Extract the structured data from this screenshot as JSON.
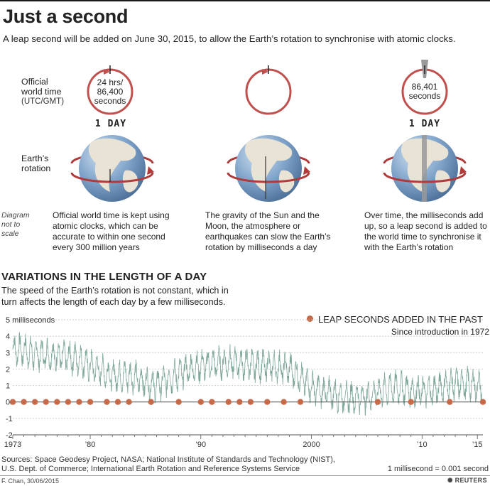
{
  "header": {
    "title": "Just a second",
    "subtitle": "A leap second will be added on June 30, 2015, to allow the Earth’s rotation to synchronise with atomic clocks."
  },
  "diagram": {
    "label_official": "Official",
    "label_world_time": "world time",
    "label_utc": "(UTC/GMT)",
    "label_earth": "Earth’s",
    "label_rotation": "rotation",
    "clock1_line1": "24 hrs/",
    "clock1_line2": "86,400",
    "clock1_line3": "seconds",
    "clock3_line1": "86,401",
    "clock3_line2": "seconds",
    "day_label": "1 DAY",
    "scale_line1": "Diagram",
    "scale_line2": "not to",
    "scale_line3": "scale",
    "desc1": [
      "Official world time is kept using",
      "atomic clocks, which can be",
      "accurate to within one second",
      "every 300 million years"
    ],
    "desc2": [
      "The gravity of the Sun and the",
      "Moon, the atmosphere or",
      "earthquakes can slow the Earth’s",
      "rotation by milliseconds a day"
    ],
    "desc3": [
      "Over time, the milliseconds add",
      "up, so a leap second is added to",
      "the world time to synchronise it",
      "with the Earth’s rotation"
    ]
  },
  "section": {
    "title": "VARIATIONS IN THE LENGTH OF A DAY",
    "subtitle": "The speed of the Earth’s rotation is not constant, which in turn affects the length of each day by a few milliseconds."
  },
  "legend": {
    "label": "LEAP SECONDS ADDED IN THE PAST",
    "sub": "Since introduction in 1972"
  },
  "footer": {
    "sources_line1": "Sources: Space Geodesy Project, NASA; National Institute of Standards and Technology (NIST),",
    "sources_line2": "U.S. Dept. of Commerce; International Earth Rotation and Reference Systems Service",
    "unit_note": "1 millisecond = 0.001 second",
    "credit": "F. Chan, 30/06/2015",
    "brand": "REUTERS"
  },
  "colors": {
    "series": "#7fa898",
    "leap_dot": "#c66a4a",
    "ring": "#c0504d",
    "ocean": "#7fa3c9",
    "land": "#e9e3d6"
  },
  "chart_data": {
    "type": "line",
    "title": "VARIATIONS IN THE LENGTH OF A DAY",
    "ylabel": "milliseconds",
    "ylim": [
      -2,
      5
    ],
    "yticks": [
      -2,
      -1,
      0,
      1,
      2,
      3,
      4,
      5
    ],
    "ytick_labels": [
      "-2",
      "-1",
      "0",
      "1",
      "2",
      "3",
      "4",
      "5 milliseconds"
    ],
    "xlim": [
      1973,
      2015.5
    ],
    "xticks": [
      1973,
      1980,
      1990,
      2000,
      2010,
      2015
    ],
    "xtick_labels": [
      "1973",
      "’80",
      "’90",
      "2000",
      "’10",
      "’15"
    ],
    "series": [
      {
        "x": [
          1973,
          1974,
          1975,
          1976,
          1977,
          1978,
          1979,
          1980,
          1981,
          1982,
          1983,
          1984,
          1985,
          1986,
          1987,
          1988,
          1989,
          1990,
          1991,
          1992,
          1993,
          1994,
          1995,
          1996,
          1997,
          1998,
          1999,
          2000,
          2001,
          2002,
          2003,
          2004,
          2005,
          2006,
          2007,
          2008,
          2009,
          2010,
          2011,
          2012,
          2013,
          2014,
          2015
        ],
        "values": [
          3.2,
          3.1,
          2.9,
          2.9,
          2.8,
          2.7,
          2.6,
          2.2,
          1.9,
          1.6,
          1.6,
          1.5,
          1.2,
          1.0,
          1.4,
          1.7,
          2.0,
          2.2,
          2.3,
          2.4,
          2.4,
          2.3,
          2.2,
          2.2,
          2.1,
          2.0,
          1.5,
          0.9,
          0.6,
          0.5,
          0.3,
          0.3,
          0.3,
          0.6,
          0.8,
          0.9,
          0.7,
          0.6,
          0.7,
          1.0,
          1.1,
          1.1,
          1.0
        ],
        "amplitude_ms": 0.7
      }
    ],
    "leap_seconds": [
      1973,
      1974,
      1975,
      1976,
      1977,
      1978,
      1979,
      1980,
      1981.5,
      1982.5,
      1983.5,
      1985.5,
      1988,
      1990,
      1991,
      1992.5,
      1993.5,
      1994.5,
      1996,
      1997.5,
      1999,
      2006,
      2009,
      2012.5,
      2015.5
    ],
    "legend": "LEAP SECONDS ADDED IN THE PAST"
  }
}
